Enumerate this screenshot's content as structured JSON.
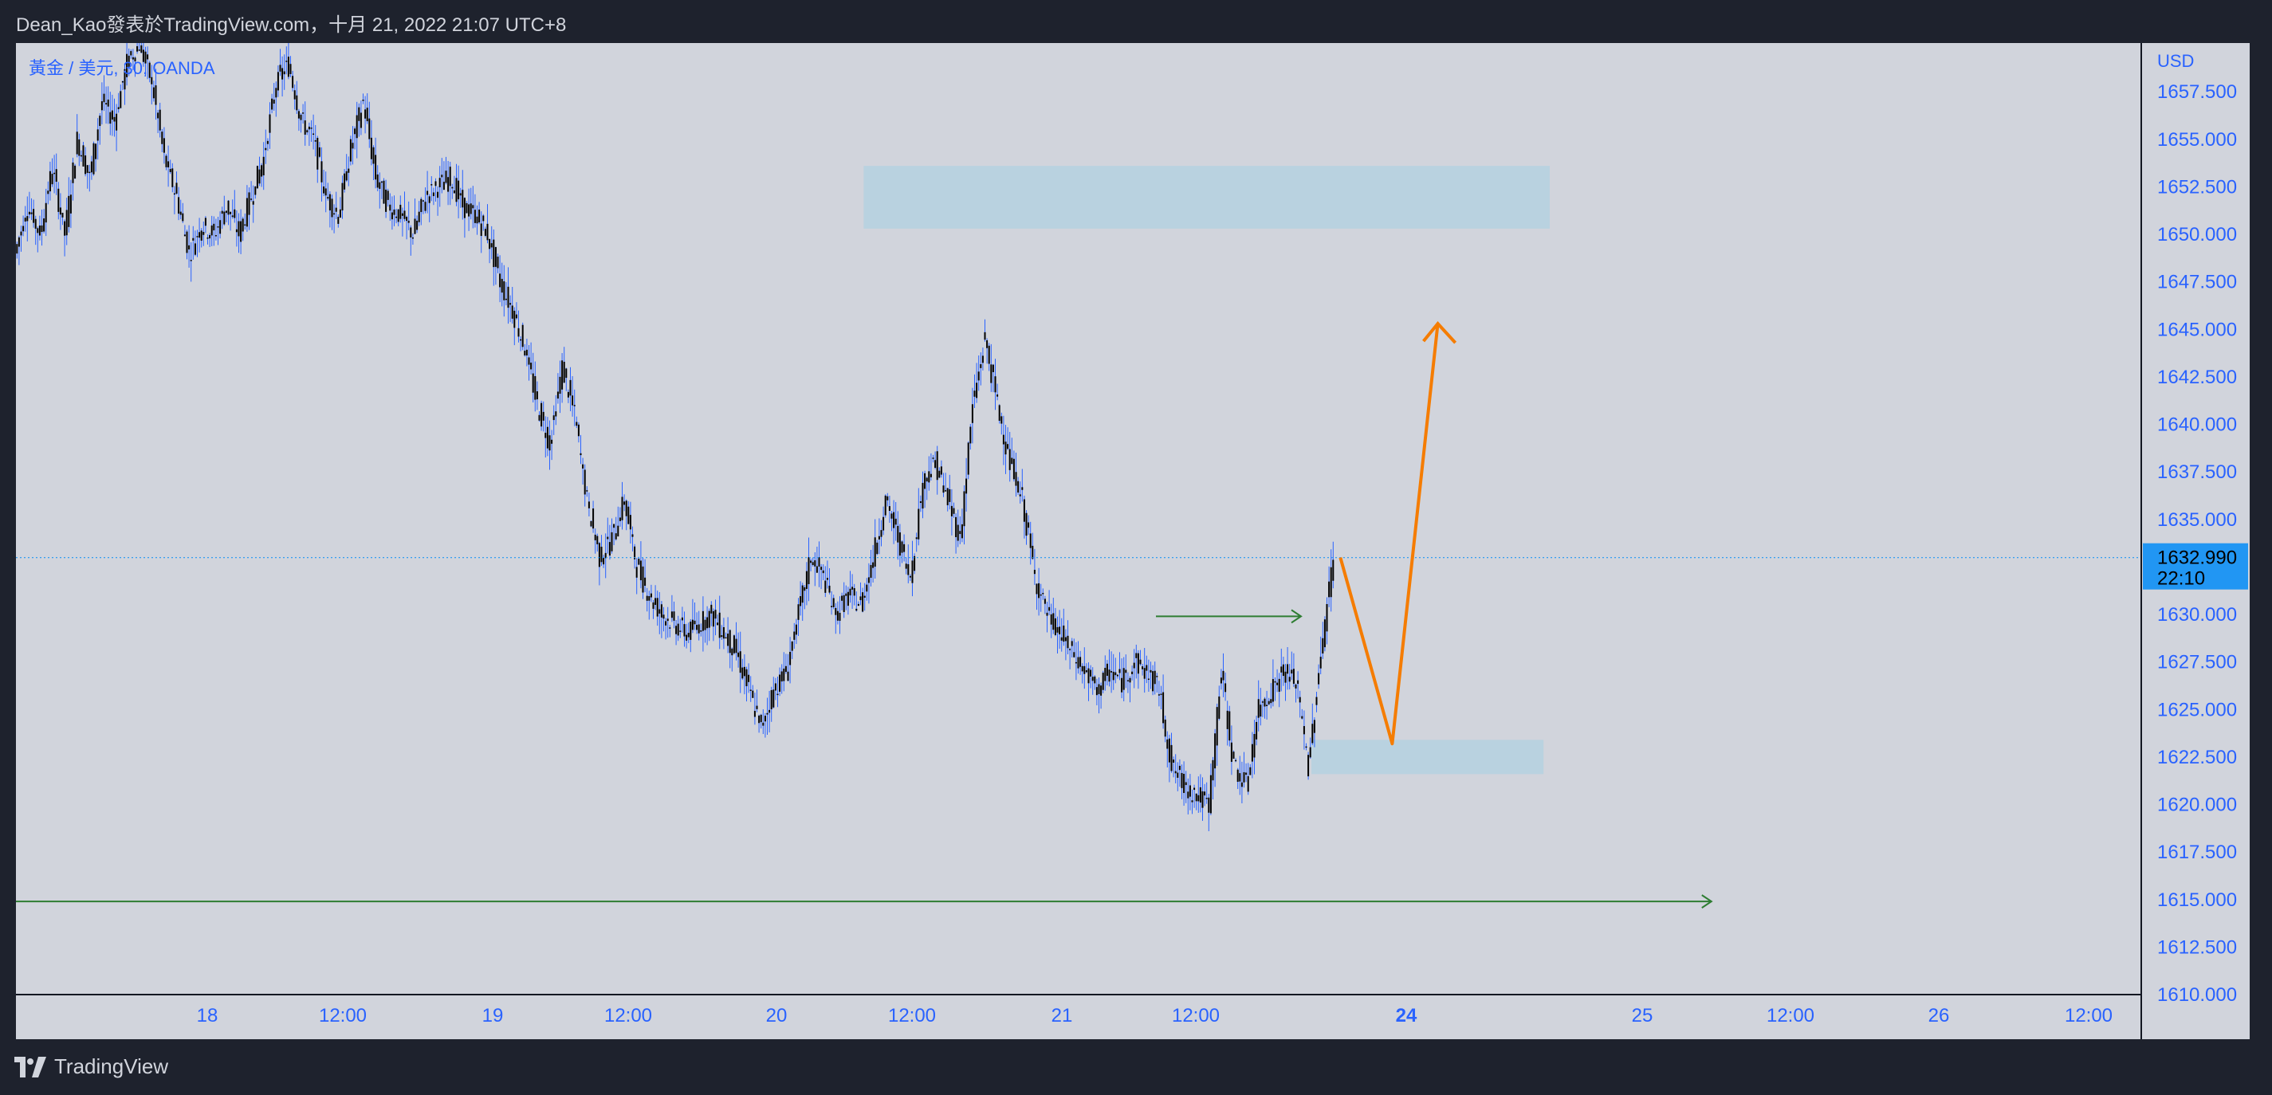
{
  "header": {
    "text": "Dean_Kao發表於TradingView.com，十月 21, 2022 21:07 UTC+8"
  },
  "footer": {
    "brand": "TradingView"
  },
  "colors": {
    "background": "#d1d4dc",
    "candle_body": "#000000",
    "candle_wick": "#2962ff",
    "zone_fill": "#a9d0e3",
    "projection": "#f57c00",
    "green_arrow": "#2e7d32",
    "price_label_bg": "#2196f3",
    "axis_text": "#2962ff",
    "frame": "#131722"
  },
  "chart_data": {
    "type": "candlestick",
    "title": "黃金 / 美元, 30, OANDA",
    "yaxis_unit": "USD",
    "ylim": [
      1610,
      1658.5
    ],
    "y_ticks": [
      "1657.500",
      "1655.000",
      "1652.500",
      "1650.000",
      "1647.500",
      "1645.000",
      "1642.500",
      "1640.000",
      "1637.500",
      "1635.000",
      "1632.500",
      "1630.000",
      "1627.500",
      "1625.000",
      "1622.500",
      "1620.000",
      "1617.500",
      "1615.000",
      "1612.500",
      "1610.000"
    ],
    "x_ticks": [
      {
        "label": "18",
        "bold": false
      },
      {
        "label": "12:00",
        "bold": false
      },
      {
        "label": "19",
        "bold": false
      },
      {
        "label": "12:00",
        "bold": false
      },
      {
        "label": "20",
        "bold": false
      },
      {
        "label": "12:00",
        "bold": false
      },
      {
        "label": "21",
        "bold": false
      },
      {
        "label": "12:00",
        "bold": false
      },
      {
        "label": "24",
        "bold": true
      },
      {
        "label": "25",
        "bold": false
      },
      {
        "label": "12:00",
        "bold": false
      },
      {
        "label": "26",
        "bold": false
      },
      {
        "label": "12:00",
        "bold": false
      }
    ],
    "last_price": {
      "value": 1632.99,
      "label": "1632.990",
      "countdown": "22:10"
    },
    "price_path": [
      [
        0,
        1649
      ],
      [
        6,
        1651.5
      ],
      [
        12,
        1650
      ],
      [
        18,
        1653.5
      ],
      [
        24,
        1650
      ],
      [
        30,
        1655
      ],
      [
        36,
        1653
      ],
      [
        42,
        1657
      ],
      [
        48,
        1656
      ],
      [
        54,
        1659
      ],
      [
        60,
        1660
      ],
      [
        66,
        1658
      ],
      [
        72,
        1654
      ],
      [
        78,
        1652
      ],
      [
        84,
        1649
      ],
      [
        90,
        1650.5
      ],
      [
        96,
        1650
      ],
      [
        102,
        1651.5
      ],
      [
        108,
        1650
      ],
      [
        114,
        1652
      ],
      [
        120,
        1654
      ],
      [
        126,
        1658
      ],
      [
        132,
        1659
      ],
      [
        138,
        1656
      ],
      [
        144,
        1655
      ],
      [
        150,
        1652
      ],
      [
        156,
        1651
      ],
      [
        162,
        1654.5
      ],
      [
        168,
        1657
      ],
      [
        174,
        1653
      ],
      [
        180,
        1651.5
      ],
      [
        186,
        1651
      ],
      [
        192,
        1650
      ],
      [
        198,
        1652
      ],
      [
        204,
        1652.5
      ],
      [
        210,
        1653
      ],
      [
        216,
        1651.5
      ],
      [
        222,
        1651
      ],
      [
        228,
        1650
      ],
      [
        234,
        1647.5
      ],
      [
        240,
        1646
      ],
      [
        246,
        1644
      ],
      [
        252,
        1641
      ],
      [
        258,
        1639
      ],
      [
        264,
        1643
      ],
      [
        270,
        1640.5
      ],
      [
        276,
        1636
      ],
      [
        282,
        1633
      ],
      [
        288,
        1634
      ],
      [
        294,
        1636
      ],
      [
        300,
        1632.5
      ],
      [
        306,
        1631
      ],
      [
        312,
        1630
      ],
      [
        318,
        1629.5
      ],
      [
        324,
        1629
      ],
      [
        330,
        1629.5
      ],
      [
        336,
        1630
      ],
      [
        342,
        1629
      ],
      [
        348,
        1628
      ],
      [
        354,
        1626
      ],
      [
        360,
        1624
      ],
      [
        366,
        1626
      ],
      [
        372,
        1627
      ],
      [
        378,
        1630
      ],
      [
        384,
        1633
      ],
      [
        390,
        1632
      ],
      [
        396,
        1630
      ],
      [
        402,
        1631
      ],
      [
        408,
        1630.5
      ],
      [
        414,
        1633
      ],
      [
        420,
        1636
      ],
      [
        426,
        1634
      ],
      [
        432,
        1632
      ],
      [
        438,
        1637
      ],
      [
        444,
        1638
      ],
      [
        450,
        1636
      ],
      [
        456,
        1634
      ],
      [
        462,
        1641
      ],
      [
        468,
        1644.5
      ],
      [
        474,
        1641
      ],
      [
        480,
        1638
      ],
      [
        486,
        1636
      ],
      [
        492,
        1632
      ],
      [
        498,
        1630
      ],
      [
        504,
        1629
      ],
      [
        510,
        1628
      ],
      [
        516,
        1627
      ],
      [
        522,
        1626
      ],
      [
        528,
        1627
      ],
      [
        534,
        1626.5
      ],
      [
        540,
        1627.5
      ],
      [
        546,
        1627
      ],
      [
        552,
        1626
      ],
      [
        558,
        1622
      ],
      [
        564,
        1621
      ],
      [
        570,
        1620.5
      ],
      [
        576,
        1620
      ],
      [
        582,
        1627
      ],
      [
        588,
        1622
      ],
      [
        594,
        1621
      ],
      [
        600,
        1625
      ],
      [
        606,
        1626
      ],
      [
        612,
        1627
      ],
      [
        618,
        1626.5
      ],
      [
        624,
        1622
      ],
      [
        630,
        1628
      ],
      [
        636,
        1632.99
      ]
    ],
    "zones": [
      {
        "x0": 409,
        "x1": 740,
        "y_low": 1650.3,
        "y_high": 1653.6
      },
      {
        "x0": 625,
        "x1": 737,
        "y_low": 1621.6,
        "y_high": 1623.4
      }
    ],
    "projection": [
      [
        639,
        1632.99
      ],
      [
        664,
        1623.2
      ],
      [
        686,
        1645.3
      ]
    ],
    "arrows": [
      {
        "x0": 550,
        "x1": 620,
        "y": 1629.9
      },
      {
        "x0": -20,
        "x1": 818,
        "y": 1614.9
      }
    ]
  }
}
